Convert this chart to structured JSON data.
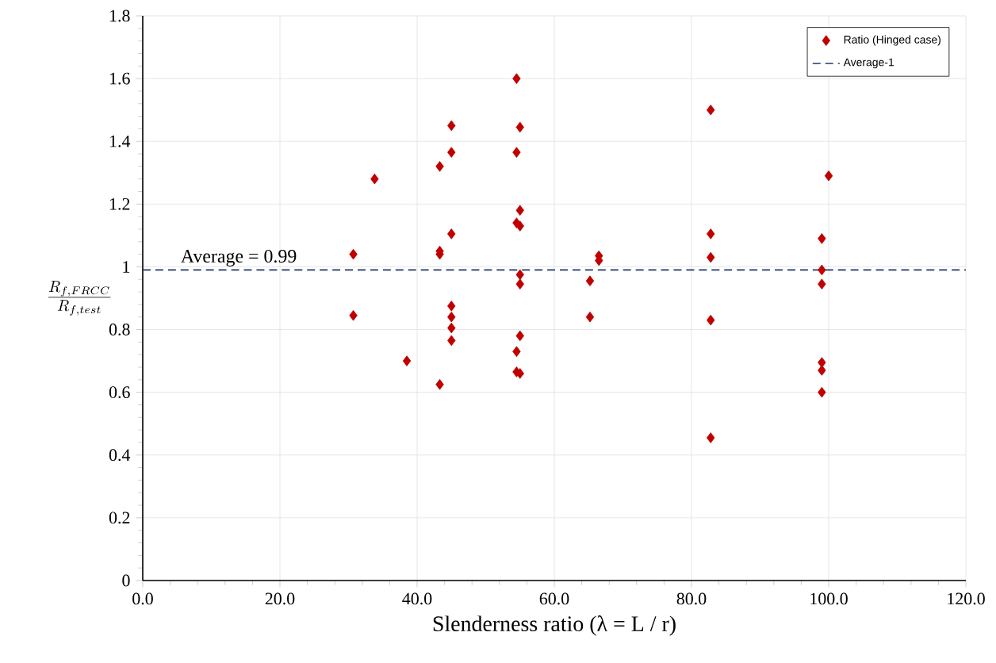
{
  "chart_data": {
    "type": "scatter",
    "xlabel": "Slenderness ratio (λ = L / r)",
    "ylabel": "\\frac{R_{f,FRCC}}{R_{f,test}}",
    "series": [
      {
        "name": "Ratio (Hinged case)",
        "color": "#c00000",
        "marker": "diamond",
        "x": [
          30.7,
          30.7,
          33.8,
          38.5,
          43.3,
          43.3,
          43.3,
          43.3,
          45,
          45,
          45,
          45,
          45,
          45,
          45,
          54.5,
          54.5,
          54.5,
          54.5,
          54.5,
          55,
          55,
          55,
          55,
          55,
          55,
          55,
          65.2,
          65.2,
          66.5,
          66.5,
          82.8,
          82.8,
          82.8,
          82.8,
          82.8,
          99,
          99,
          99,
          99,
          99,
          99,
          100
        ],
        "values": [
          1.04,
          0.845,
          1.28,
          0.7,
          1.32,
          1.05,
          1.04,
          0.625,
          1.45,
          1.365,
          1.105,
          0.875,
          0.84,
          0.805,
          0.765,
          1.6,
          1.365,
          1.14,
          0.73,
          0.665,
          1.445,
          1.18,
          1.13,
          0.975,
          0.945,
          0.78,
          0.66,
          0.955,
          0.84,
          1.035,
          1.02,
          1.5,
          1.105,
          1.03,
          0.83,
          0.455,
          1.09,
          0.99,
          0.945,
          0.695,
          0.67,
          0.6,
          1.29
        ]
      },
      {
        "name": "Average-1",
        "type": "line",
        "color": "#1f3864",
        "line_style": "dashed",
        "marker": "none",
        "x": [
          0,
          120
        ],
        "values": [
          0.99,
          0.99
        ]
      }
    ],
    "annotations": [
      {
        "text": "Average = 0.99",
        "x": 14,
        "y": 0.99
      }
    ],
    "xlim": [
      0,
      120
    ],
    "ylim": [
      0,
      1.8
    ],
    "xticks": [
      {
        "value": 0,
        "label": "0.0"
      },
      {
        "value": 20,
        "label": "20.0"
      },
      {
        "value": 40,
        "label": "40.0"
      },
      {
        "value": 60,
        "label": "60.0"
      },
      {
        "value": 80,
        "label": "80.0"
      },
      {
        "value": 100,
        "label": "100.0"
      },
      {
        "value": 120,
        "label": "120.0"
      }
    ],
    "yticks": [
      0,
      0.2,
      0.4,
      0.6,
      0.8,
      1,
      1.2,
      1.4,
      1.6,
      1.8
    ],
    "grid": true,
    "legend": "top right"
  }
}
